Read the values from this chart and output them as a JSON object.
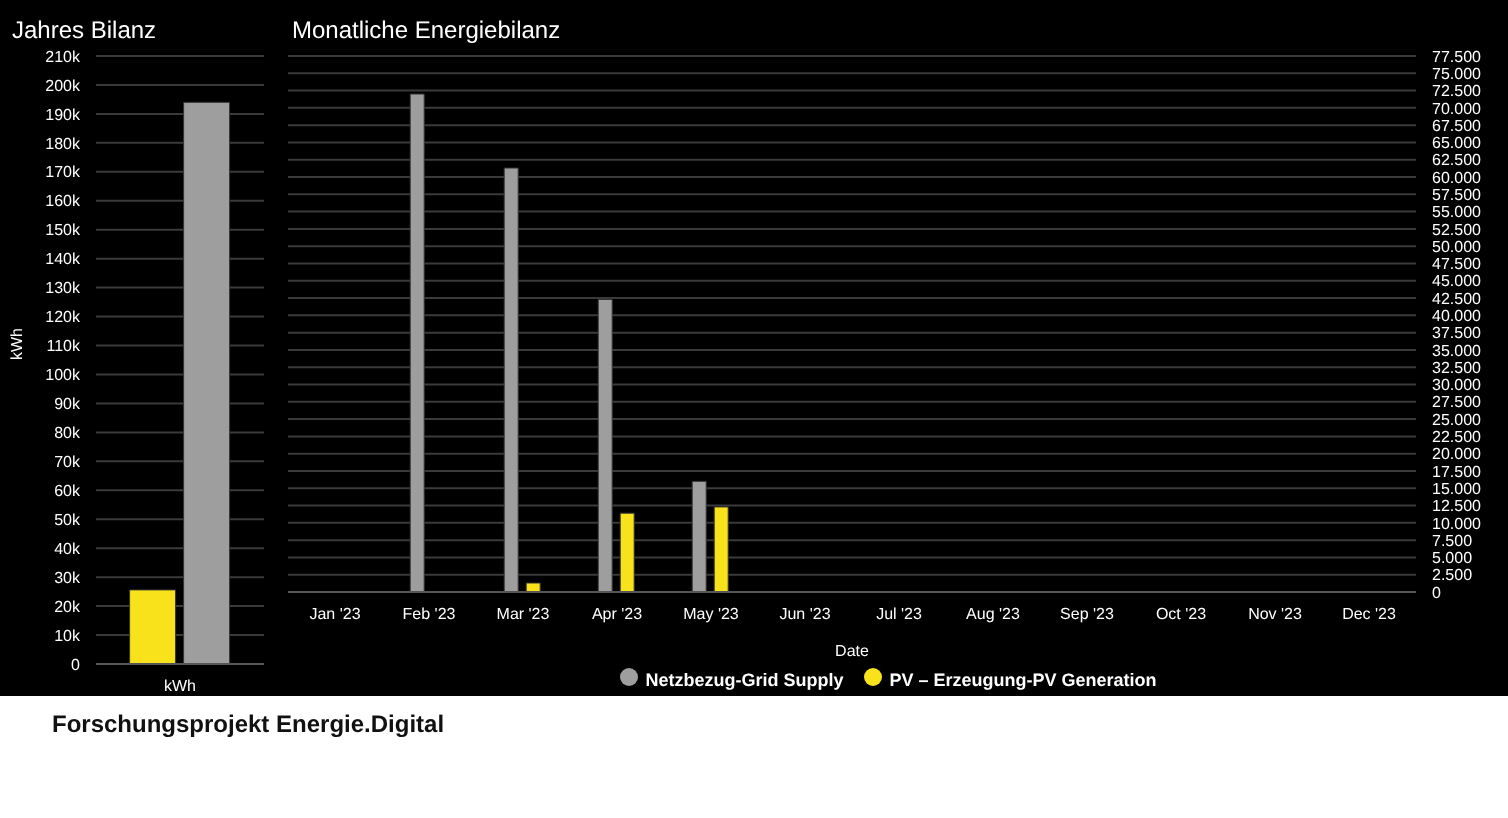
{
  "chart_data": [
    {
      "type": "bar",
      "title": "Jahres Bilanz",
      "ylabel": "kWh",
      "categories": [
        "kWh"
      ],
      "series": [
        {
          "color": "#f7e21b",
          "values": [
            25600
          ]
        },
        {
          "color": "#9e9e9e",
          "values": [
            194000
          ]
        }
      ],
      "ylim": [
        0,
        210000
      ],
      "yticks": [
        0,
        {
          "value": 10000,
          "label": "10k"
        },
        {
          "value": 20000,
          "label": "20k"
        },
        {
          "value": 30000,
          "label": "30k"
        },
        {
          "value": 40000,
          "label": "40k"
        },
        {
          "value": 50000,
          "label": "50k"
        },
        {
          "value": 60000,
          "label": "60k"
        },
        {
          "value": 70000,
          "label": "70k"
        },
        {
          "value": 80000,
          "label": "80k"
        },
        {
          "value": 90000,
          "label": "90k"
        },
        {
          "value": 100000,
          "label": "100k"
        },
        {
          "value": 110000,
          "label": "110k"
        },
        {
          "value": 120000,
          "label": "120k"
        },
        {
          "value": 130000,
          "label": "130k"
        },
        {
          "value": 140000,
          "label": "140k"
        },
        {
          "value": 150000,
          "label": "150k"
        },
        {
          "value": 160000,
          "label": "160k"
        },
        {
          "value": 170000,
          "label": "170k"
        },
        {
          "value": 180000,
          "label": "180k"
        },
        {
          "value": 190000,
          "label": "190k"
        },
        {
          "value": 200000,
          "label": "200k"
        },
        {
          "value": 210000,
          "label": "210k"
        }
      ],
      "grid": "y",
      "legend": false
    },
    {
      "type": "bar",
      "title": "Monatliche Energiebilanz",
      "xlabel": "Date",
      "categories": [
        "Jan '23",
        "Feb '23",
        "Mar '23",
        "Apr '23",
        "May '23",
        "Jun '23",
        "Jul '23",
        "Aug '23",
        "Sep '23",
        "Oct '23",
        "Nov '23",
        "Dec '23"
      ],
      "series": [
        {
          "name": "Netzbezug-Grid Supply",
          "color": "#9e9e9e",
          "values": [
            null,
            72000,
            61300,
            42300,
            16000,
            null,
            null,
            null,
            null,
            null,
            null,
            null
          ]
        },
        {
          "name": "PV – Erzeugung-PV Generation",
          "color": "#f7e21b",
          "values": [
            null,
            null,
            1300,
            11400,
            12300,
            null,
            null,
            null,
            null,
            null,
            null,
            null
          ]
        }
      ],
      "ylim": [
        0,
        77500
      ],
      "yticks": [
        0,
        {
          "value": 2500,
          "label": "2.500"
        },
        {
          "value": 5000,
          "label": "5.000"
        },
        {
          "value": 7500,
          "label": "7.500"
        },
        {
          "value": 10000,
          "label": "10.000"
        },
        {
          "value": 12500,
          "label": "12.500"
        },
        {
          "value": 15000,
          "label": "15.000"
        },
        {
          "value": 17500,
          "label": "17.500"
        },
        {
          "value": 20000,
          "label": "20.000"
        },
        {
          "value": 22500,
          "label": "22.500"
        },
        {
          "value": 25000,
          "label": "25.000"
        },
        {
          "value": 27500,
          "label": "27.500"
        },
        {
          "value": 30000,
          "label": "30.000"
        },
        {
          "value": 32500,
          "label": "32.500"
        },
        {
          "value": 35000,
          "label": "35.000"
        },
        {
          "value": 37500,
          "label": "37.500"
        },
        {
          "value": 40000,
          "label": "40.000"
        },
        {
          "value": 42500,
          "label": "42.500"
        },
        {
          "value": 45000,
          "label": "45.000"
        },
        {
          "value": 47500,
          "label": "47.500"
        },
        {
          "value": 50000,
          "label": "50.000"
        },
        {
          "value": 52500,
          "label": "52.500"
        },
        {
          "value": 55000,
          "label": "55.000"
        },
        {
          "value": 57500,
          "label": "57.500"
        },
        {
          "value": 60000,
          "label": "60.000"
        },
        {
          "value": 62500,
          "label": "62.500"
        },
        {
          "value": 65000,
          "label": "65.000"
        },
        {
          "value": 67500,
          "label": "67.500"
        },
        {
          "value": 70000,
          "label": "70.000"
        },
        {
          "value": 72500,
          "label": "72.500"
        },
        {
          "value": 75000,
          "label": "75.000"
        },
        {
          "value": 77500,
          "label": "77.500"
        }
      ],
      "grid": "y",
      "legend": "bottom",
      "annotations": [
        "Forschungsprojekt Energie.Digital"
      ]
    }
  ]
}
